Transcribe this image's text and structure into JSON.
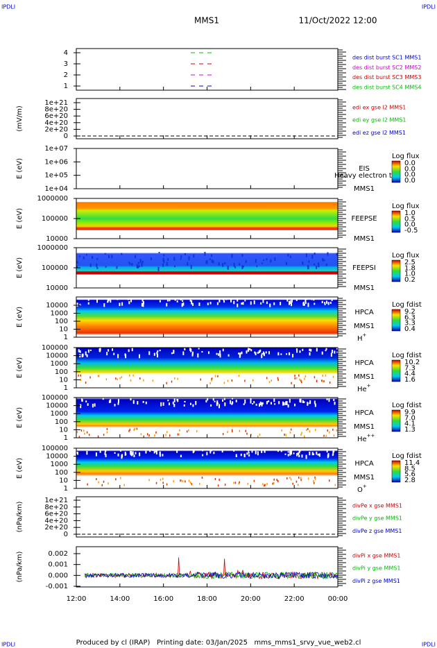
{
  "header": {
    "corner_left": "IPDLI",
    "corner_right": "IPDLI",
    "title": "MMS1",
    "date": "11/Oct/2022 12:00"
  },
  "panels": [
    {
      "yticks": [
        "4",
        "3",
        "2",
        "1"
      ],
      "legend": [
        {
          "text": "des dist burst SC1 MMS1",
          "color": "#0000cc"
        },
        {
          "text": "des dist burst SC2 MMS2",
          "color": "#cc00cc"
        },
        {
          "text": "des dist burst SC3 MMS3",
          "color": "#cc0000"
        },
        {
          "text": "des dist burst SC4 MMS4",
          "color": "#00bb00"
        }
      ]
    },
    {
      "ylabel": "(mV/m)",
      "yticks": [
        "1e+21",
        "8e+20",
        "6e+20",
        "4e+20",
        "2e+20",
        "0"
      ],
      "legend": [
        {
          "text": "edi ex gse l2 MMS1",
          "color": "#cc0000"
        },
        {
          "text": "edi ey gse l2 MMS1",
          "color": "#00bb00"
        },
        {
          "text": "edi ez gse l2 MMS1",
          "color": "#0000cc"
        }
      ]
    },
    {
      "ylabel": "E (eV)",
      "yticks": [
        "1e+07",
        "1e+06",
        "1e+05",
        "1e+04"
      ],
      "labels": [
        "EIS",
        "MMS1"
      ],
      "overlay": "Heavy electron to",
      "colorbar": {
        "title": "Log flux",
        "ticks": [
          "0.0",
          "0.0",
          "0.0",
          "0.0"
        ]
      }
    },
    {
      "ylabel": "E (eV)",
      "yticks": [
        "1000000",
        "100000",
        "10000"
      ],
      "labels": [
        "FEEPSE",
        "MMS1"
      ],
      "colorbar": {
        "title": "Log flux",
        "ticks": [
          "1.0",
          "0.5",
          "0.0",
          "-0.5"
        ]
      }
    },
    {
      "ylabel": "E (eV)",
      "yticks": [
        "1000000",
        "100000",
        "10000"
      ],
      "labels": [
        "FEEPSI",
        "MMS1"
      ],
      "colorbar": {
        "title": "Log flux",
        "ticks": [
          "2.5",
          "1.8",
          "1.0",
          "0.2"
        ]
      }
    },
    {
      "ylabel": "E (eV)",
      "yticks": [
        "10000",
        "1000",
        "100",
        "10",
        "1"
      ],
      "labels": [
        "HPCA",
        "MMS1"
      ],
      "species": {
        "base": "H",
        "sup": "+"
      },
      "colorbar": {
        "title": "Log fdist",
        "ticks": [
          "9.2",
          "6.3",
          "3.3",
          "0.4"
        ]
      }
    },
    {
      "ylabel": "E (eV)",
      "yticks": [
        "100000",
        "10000",
        "1000",
        "100",
        "10",
        "1"
      ],
      "labels": [
        "HPCA",
        "MMS1"
      ],
      "species": {
        "base": "He",
        "sup": "+"
      },
      "colorbar": {
        "title": "Log fdist",
        "ticks": [
          "10.2",
          "7.3",
          "4.4",
          "1.6"
        ]
      }
    },
    {
      "ylabel": "E (eV)",
      "yticks": [
        "100000",
        "10000",
        "1000",
        "100",
        "10",
        "1"
      ],
      "labels": [
        "HPCA",
        "MMS1"
      ],
      "species": {
        "base": "He",
        "sup": "++"
      },
      "colorbar": {
        "title": "Log fdist",
        "ticks": [
          "9.9",
          "7.0",
          "4.1",
          "1.3"
        ]
      }
    },
    {
      "ylabel": "E (eV)",
      "yticks": [
        "100000",
        "10000",
        "1000",
        "100",
        "10",
        "1"
      ],
      "labels": [
        "HPCA",
        "MMS1"
      ],
      "species": {
        "base": "O",
        "sup": "+"
      },
      "colorbar": {
        "title": "Log fdist",
        "ticks": [
          "11.4",
          "8.5",
          "5.6",
          "2.8"
        ]
      }
    },
    {
      "ylabel": "(nPa/km)",
      "yticks": [
        "1e+21",
        "8e+20",
        "6e+20",
        "4e+20",
        "2e+20",
        "0"
      ],
      "legend": [
        {
          "text": "divPe x gse MMS1",
          "color": "#cc0000"
        },
        {
          "text": "divPe y gse MMS1",
          "color": "#00bb00"
        },
        {
          "text": "divPe z gse MMS1",
          "color": "#0000cc"
        }
      ]
    },
    {
      "ylabel": "(nPa/km)",
      "yticks": [
        "0.002",
        "0.001",
        "0.000",
        "-0.001"
      ],
      "legend": [
        {
          "text": "divPi x gse MMS1",
          "color": "#cc0000"
        },
        {
          "text": "divPi y gse MMS1",
          "color": "#00bb00"
        },
        {
          "text": "divPi z gse MMS1",
          "color": "#0000cc"
        }
      ]
    }
  ],
  "xticks": [
    "12:00",
    "14:00",
    "16:00",
    "18:00",
    "20:00",
    "22:00",
    "00:00"
  ],
  "footer": "Produced by cl (IRAP)   Printing date: 03/Jan/2025   mms_mms1_srvy_vue_web2.cl"
}
